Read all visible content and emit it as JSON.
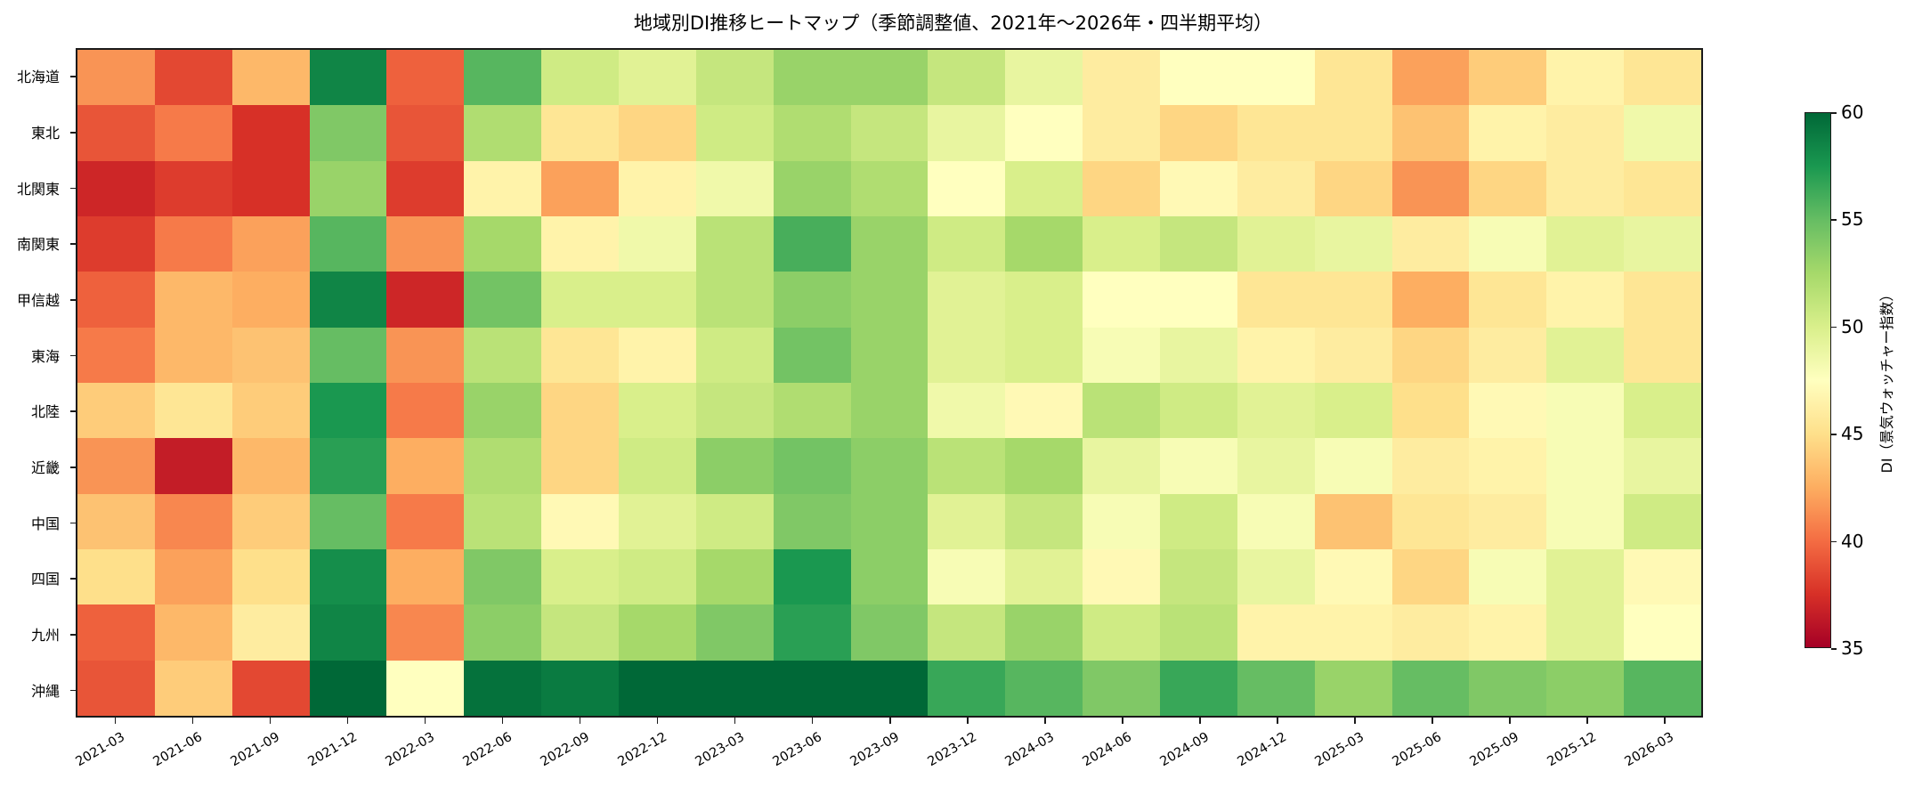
{
  "chart_data": {
    "type": "heatmap",
    "title": "地域別DI推移ヒートマップ（季節調整値、2021年〜2026年・四半期平均）",
    "xlabel": "",
    "ylabel": "",
    "colormap": "RdYlGn",
    "vmin": 35,
    "vmax": 60,
    "colorbar": {
      "label": "DI（景気ウォッチャー指数）",
      "ticks": [
        35,
        40,
        45,
        50,
        55,
        60
      ],
      "position": "right"
    },
    "x": [
      "2021-03",
      "2021-06",
      "2021-09",
      "2021-12",
      "2022-03",
      "2022-06",
      "2022-09",
      "2022-12",
      "2023-03",
      "2023-06",
      "2023-09",
      "2023-12",
      "2024-03",
      "2024-06",
      "2024-09",
      "2024-12",
      "2025-03",
      "2025-06",
      "2025-09",
      "2025-12",
      "2026-03"
    ],
    "y": [
      "北海道",
      "東北",
      "北関東",
      "南関東",
      "甲信越",
      "東海",
      "北陸",
      "近畿",
      "中国",
      "四国",
      "九州",
      "沖縄"
    ],
    "values": [
      [
        41.5,
        38.5,
        43.0,
        58.5,
        39.5,
        55.5,
        50.5,
        49.5,
        51.0,
        53.0,
        53.0,
        51.0,
        49.0,
        46.0,
        47.5,
        47.5,
        45.5,
        42.0,
        44.0,
        46.5,
        45.5
      ],
      [
        39.0,
        40.5,
        37.5,
        54.0,
        39.0,
        52.0,
        45.5,
        44.5,
        50.5,
        52.0,
        51.0,
        49.0,
        47.5,
        46.0,
        44.5,
        45.5,
        45.5,
        43.5,
        46.5,
        46.0,
        48.5
      ],
      [
        37.0,
        38.0,
        37.5,
        53.0,
        38.0,
        46.5,
        42.0,
        46.5,
        48.5,
        53.0,
        52.0,
        47.5,
        50.0,
        44.5,
        47.0,
        46.0,
        44.5,
        41.5,
        44.5,
        46.0,
        45.5
      ],
      [
        38.0,
        40.5,
        42.0,
        55.5,
        41.5,
        52.5,
        46.5,
        48.5,
        51.5,
        56.0,
        53.0,
        50.5,
        52.5,
        50.0,
        51.0,
        49.5,
        49.0,
        46.0,
        48.0,
        49.5,
        49.0
      ],
      [
        39.5,
        43.0,
        42.5,
        58.5,
        37.0,
        54.5,
        50.0,
        50.0,
        51.5,
        53.5,
        53.0,
        49.5,
        50.0,
        47.5,
        47.5,
        45.5,
        45.5,
        42.5,
        45.5,
        46.5,
        45.5
      ],
      [
        40.5,
        43.0,
        43.5,
        55.0,
        41.5,
        51.5,
        45.5,
        46.5,
        50.5,
        54.5,
        53.0,
        49.5,
        50.0,
        48.0,
        49.0,
        46.5,
        46.0,
        44.5,
        46.0,
        49.5,
        45.5
      ],
      [
        44.0,
        45.5,
        44.0,
        57.5,
        40.5,
        53.0,
        44.5,
        50.0,
        51.0,
        52.0,
        53.0,
        48.5,
        47.0,
        51.5,
        50.5,
        49.5,
        50.0,
        45.0,
        47.0,
        48.0,
        50.0
      ],
      [
        41.5,
        36.5,
        43.0,
        57.0,
        42.5,
        52.0,
        44.5,
        50.5,
        53.5,
        54.5,
        53.5,
        51.5,
        52.5,
        49.0,
        48.0,
        49.0,
        48.0,
        46.0,
        46.5,
        48.0,
        49.0
      ],
      [
        43.5,
        41.0,
        44.0,
        55.0,
        40.5,
        51.5,
        47.0,
        49.5,
        50.5,
        54.0,
        53.5,
        49.5,
        51.0,
        48.0,
        50.5,
        48.0,
        43.5,
        45.5,
        46.0,
        48.0,
        50.5
      ],
      [
        45.0,
        42.0,
        45.0,
        58.0,
        42.5,
        54.0,
        50.0,
        50.5,
        52.5,
        57.5,
        53.5,
        48.0,
        49.5,
        47.0,
        51.0,
        49.0,
        47.0,
        44.5,
        48.0,
        49.5,
        47.0
      ],
      [
        39.5,
        43.0,
        46.0,
        58.5,
        41.0,
        53.5,
        51.0,
        52.5,
        54.0,
        57.0,
        54.0,
        51.0,
        53.0,
        50.5,
        51.5,
        46.5,
        46.5,
        46.0,
        46.5,
        49.5,
        47.5
      ],
      [
        39.0,
        44.0,
        38.5,
        60.0,
        47.5,
        59.5,
        59.0,
        60.5,
        60.5,
        60.5,
        60.5,
        56.5,
        55.5,
        54.0,
        56.5,
        55.0,
        53.0,
        55.0,
        54.0,
        53.5,
        55.5
      ]
    ]
  }
}
